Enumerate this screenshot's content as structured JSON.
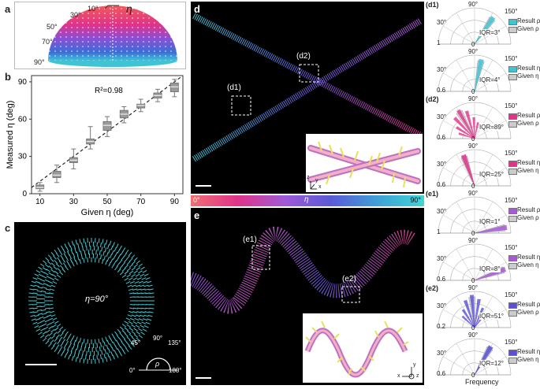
{
  "panels": {
    "a": {
      "label": "a",
      "eta_symbol": "η",
      "angles": [
        "10°",
        "30°",
        "50°",
        "70°",
        "90°"
      ]
    },
    "b": {
      "label": "b",
      "r2": "R²=0.98"
    },
    "c": {
      "label": "c",
      "eta_text": "η=90°",
      "rho_symbol": "ρ",
      "rho_angles": [
        "0°",
        "45°",
        "90°",
        "135°",
        "180°"
      ]
    },
    "d": {
      "label": "d",
      "sub1": "(d1)",
      "sub2": "(d2)",
      "axes": [
        "z",
        "y",
        "x"
      ]
    },
    "colorbar": {
      "left": "0°",
      "mid": "η",
      "right": "90°"
    },
    "e": {
      "label": "e",
      "sub1": "(e1)",
      "sub2": "(e2)",
      "axes": [
        "y",
        "x",
        "z"
      ]
    },
    "polar_xlabel": "Frequency"
  },
  "chart_data": [
    {
      "type": "box",
      "title": "",
      "xlabel": "Given η (deg)",
      "ylabel": "Measured η (deg)",
      "xlim": [
        5,
        95
      ],
      "ylim": [
        0,
        95
      ],
      "x_ticks": [
        10,
        30,
        50,
        70,
        90
      ],
      "y_ticks": [
        0,
        30,
        60,
        90
      ],
      "annotation": "R²=0.98",
      "categories": [
        10,
        20,
        30,
        40,
        50,
        60,
        70,
        80,
        90
      ],
      "boxes": [
        {
          "x": 10,
          "low": 2,
          "q1": 4,
          "median": 5,
          "q3": 7,
          "high": 9
        },
        {
          "x": 20,
          "low": 9,
          "q1": 13,
          "median": 15,
          "q3": 18,
          "high": 23
        },
        {
          "x": 30,
          "low": 20,
          "q1": 25,
          "median": 27,
          "q3": 29,
          "high": 36
        },
        {
          "x": 40,
          "low": 36,
          "q1": 40,
          "median": 42,
          "q3": 44,
          "high": 54
        },
        {
          "x": 50,
          "low": 46,
          "q1": 51,
          "median": 55,
          "q3": 58,
          "high": 62
        },
        {
          "x": 60,
          "low": 57,
          "q1": 61,
          "median": 64,
          "q3": 67,
          "high": 70
        },
        {
          "x": 70,
          "low": 66,
          "q1": 69,
          "median": 71,
          "q3": 72,
          "high": 76
        },
        {
          "x": 80,
          "low": 74,
          "q1": 77,
          "median": 79,
          "q3": 81,
          "high": 84
        },
        {
          "x": 90,
          "low": 78,
          "q1": 82,
          "median": 86,
          "q3": 89,
          "high": 92
        }
      ]
    }
  ],
  "polar": [
    {
      "group": "(d1)",
      "range_label": "1",
      "iqr": "IQR=3°",
      "legend": [
        "Result ρ",
        "Given ρ"
      ],
      "color": "#3fc4d6",
      "dir": 55
    },
    {
      "group": "",
      "range_label": "0.6",
      "iqr": "IQR=4°",
      "legend": [
        "Result η",
        "Given η"
      ],
      "color": "#3fc4d6",
      "dir": 78
    },
    {
      "group": "(d2)",
      "range_label": "0.6",
      "iqr": "IQR=89°",
      "legend": [
        "Result ρ",
        "Given ρ"
      ],
      "color": "#e0338a",
      "dir": 120
    },
    {
      "group": "",
      "range_label": "0.6",
      "iqr": "IQR=25°",
      "legend": [
        "Result η",
        "Given η"
      ],
      "color": "#e0338a",
      "dir": 110
    },
    {
      "group": "(e1)",
      "range_label": "1",
      "iqr": "IQR=1°",
      "legend": [
        "Result ρ",
        "Given ρ"
      ],
      "color": "#a85ad6",
      "dir": 10
    },
    {
      "group": "",
      "range_label": "0.6",
      "iqr": "IQR=8°",
      "legend": [
        "Result η",
        "Given η"
      ],
      "color": "#a85ad6",
      "dir": 20
    },
    {
      "group": "(e2)",
      "range_label": "0.2",
      "iqr": "IQR=51°",
      "legend": [
        "Result ρ",
        "Given ρ"
      ],
      "color": "#5a4fd6",
      "dir": 95
    },
    {
      "group": "",
      "range_label": "0.6",
      "iqr": "IQR=12°",
      "legend": [
        "Result η",
        "Given η"
      ],
      "color": "#5a4fd6",
      "dir": 60
    }
  ],
  "polar_angles": {
    "top": "90°",
    "upper_right": "150°",
    "left": "30°",
    "zero": "0"
  }
}
